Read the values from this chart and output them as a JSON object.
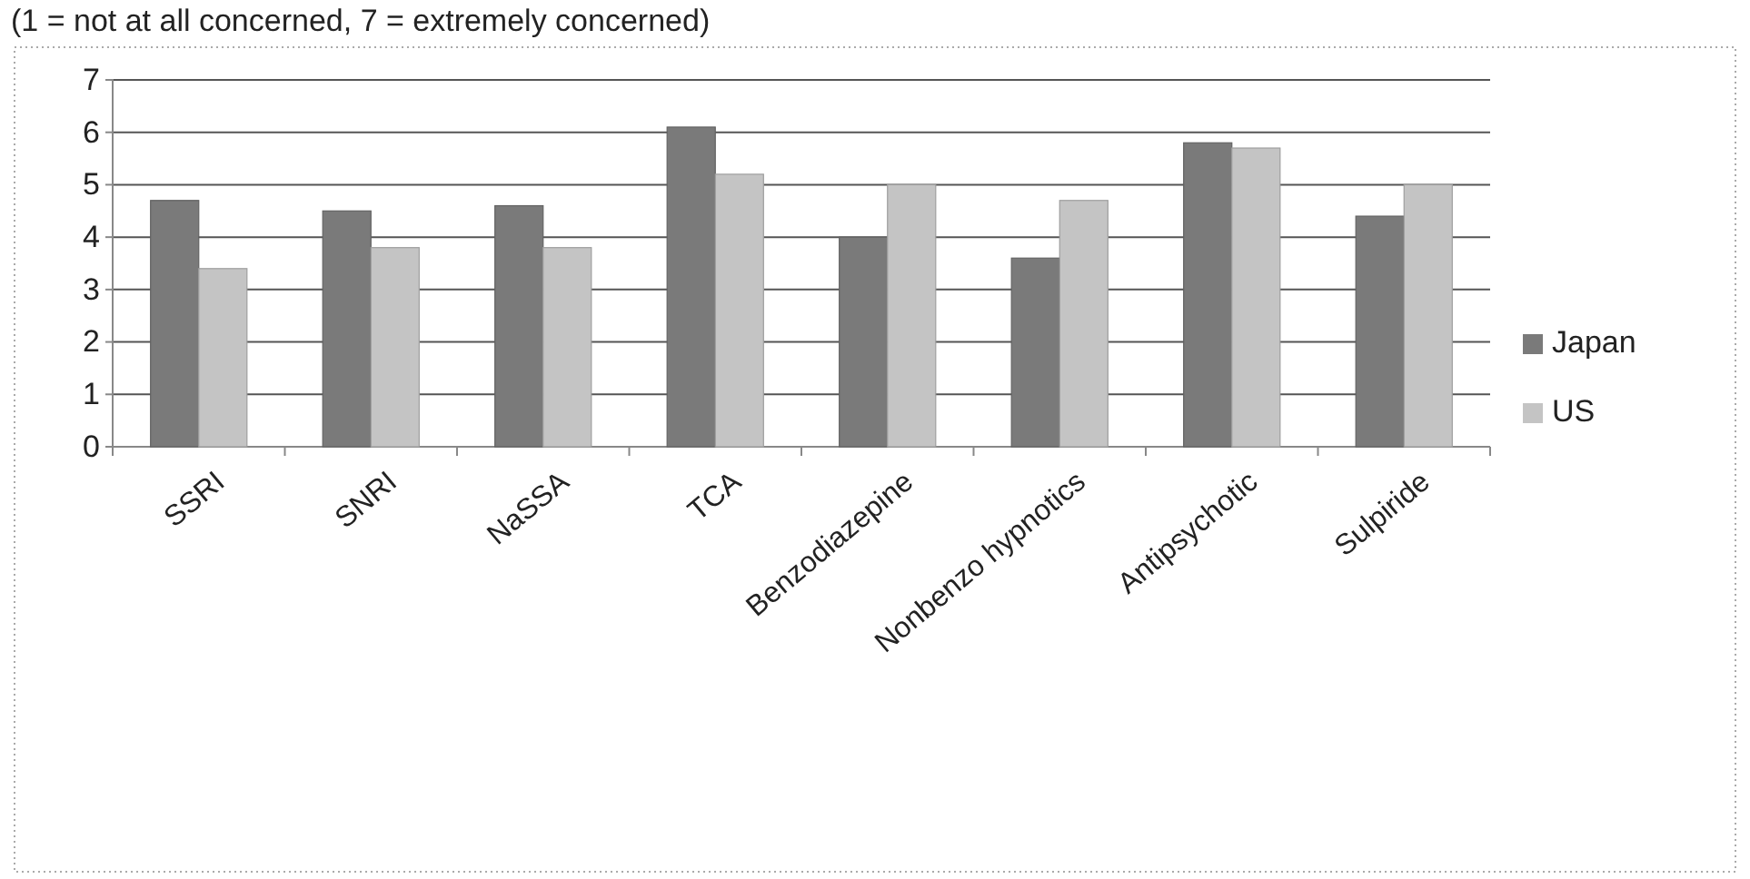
{
  "chart_data": {
    "type": "bar",
    "title": "(1 = not at all concerned, 7 = extremely concerned)",
    "categories": [
      "SSRI",
      "SNRI",
      "NaSSA",
      "TCA",
      "Benzodiazepine",
      "Nonbenzo hypnotics",
      "Antipsychotic",
      "Sulpiride"
    ],
    "series": [
      {
        "name": "Japan",
        "color": "#7a7a7a",
        "values": [
          4.7,
          4.5,
          4.6,
          6.1,
          4.0,
          3.6,
          5.8,
          4.4
        ]
      },
      {
        "name": "US",
        "color": "#c4c4c4",
        "values": [
          3.4,
          3.8,
          3.8,
          5.2,
          5.0,
          4.7,
          5.7,
          5.0
        ]
      }
    ],
    "ylim": [
      0,
      7
    ],
    "yticks": [
      0,
      1,
      2,
      3,
      4,
      5,
      6,
      7
    ],
    "grid": "y",
    "legend": "right"
  }
}
